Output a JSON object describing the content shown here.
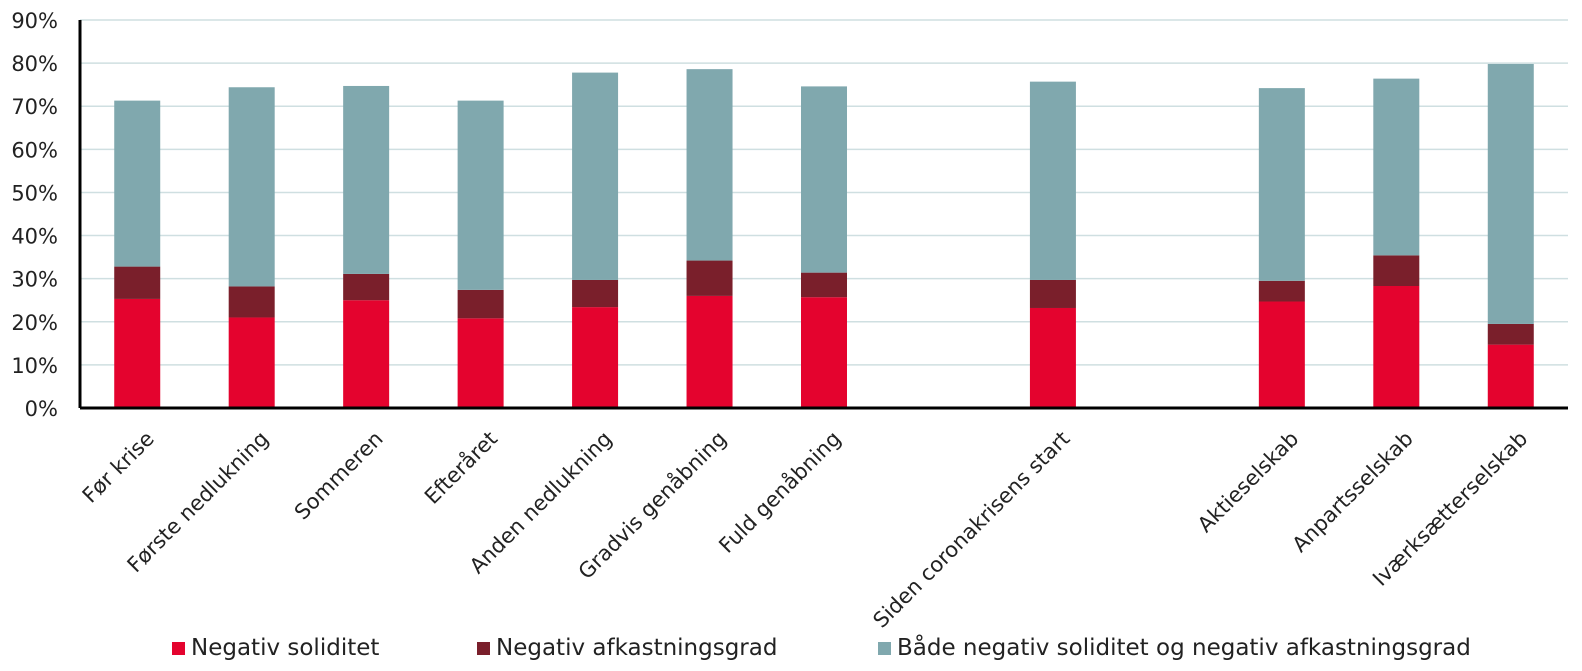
{
  "chart_data": {
    "type": "bar",
    "stacked": true,
    "categories": [
      "Før krise",
      "Første nedlukning",
      "Sommeren",
      "Efteråret",
      "Anden nedlukning",
      "Gradvis genåbning",
      "Fuld genåbning",
      "",
      "Siden coronakrisens start",
      "",
      "Aktieselskab",
      "Anpartsselskab",
      "Iværksætterselskab"
    ],
    "series": [
      {
        "name": "Negativ soliditet",
        "color": "#e4032e",
        "values": [
          25.3,
          21.0,
          25.0,
          20.8,
          23.4,
          26.0,
          25.7,
          null,
          23.2,
          null,
          24.7,
          28.3,
          14.7
        ]
      },
      {
        "name": "Negativ afkastningsgrad",
        "color": "#7a1f2b",
        "values": [
          7.5,
          7.2,
          6.1,
          6.6,
          6.3,
          8.2,
          5.7,
          null,
          6.5,
          null,
          4.8,
          7.1,
          4.8
        ]
      },
      {
        "name": "Både negativ soliditet og negativ afkastningsgrad",
        "color": "#80a8ae",
        "values": [
          38.5,
          46.2,
          43.6,
          43.9,
          48.1,
          44.4,
          43.2,
          null,
          46.0,
          null,
          44.7,
          41.0,
          60.3
        ]
      }
    ],
    "ylim": [
      0,
      90
    ],
    "yticks": [
      "0%",
      "10%",
      "20%",
      "30%",
      "40%",
      "50%",
      "60%",
      "70%",
      "80%",
      "90%"
    ],
    "grid": true,
    "legend_position": "bottom"
  }
}
